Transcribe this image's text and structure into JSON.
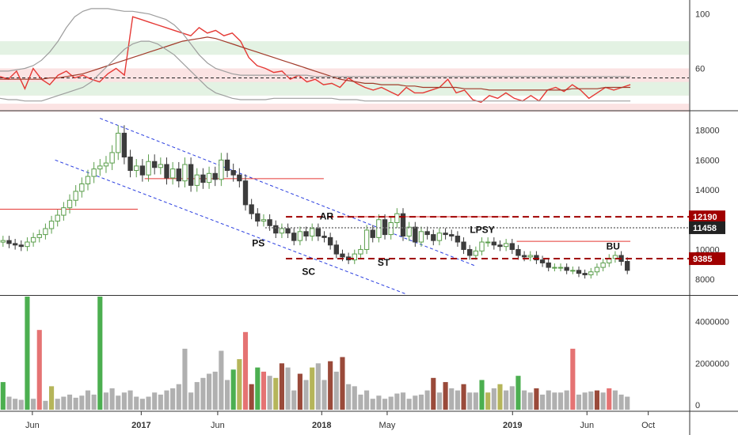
{
  "colors": {
    "up": "#5a9e4b",
    "down": "#e24b4b",
    "price_bar": "#3c3c3c",
    "rsi": "#e53935",
    "rsi_ma": "#a23b2b",
    "bands": "#9e9e9e",
    "channel": "#2b3fe0",
    "level_dark": "#a00000",
    "level_light": "#e53935",
    "level_mid": "#757575",
    "zone_green": "#e3f2e3",
    "zone_red": "#fbe3e3",
    "vol_gray": "#b0b0b0",
    "vol_green": "#4caf50",
    "vol_red": "#e57373",
    "vol_olive": "#b5b55a",
    "vol_brown": "#9a4a3a",
    "axis_text": "#333333",
    "grid": "#eeeeee"
  },
  "chart_data": [
    {
      "type": "line",
      "name": "oscillator",
      "y_axis_ticks": [
        "100",
        "60"
      ],
      "ylim": [
        30,
        108
      ],
      "zones": [
        {
          "from": 70,
          "to": 80,
          "color": "zone_green"
        },
        {
          "from": 40,
          "to": 60,
          "color": "zone_red"
        },
        {
          "from": 40,
          "to": 50,
          "color": "zone_green"
        },
        {
          "from": 28,
          "to": 34,
          "color": "zone_red"
        }
      ],
      "dashed_level": 53,
      "series": [
        {
          "role": "rsi",
          "values": [
            54,
            52,
            58,
            45,
            60,
            52,
            48,
            55,
            58,
            53,
            55,
            52,
            50,
            56,
            60,
            55,
            98,
            96,
            94,
            92,
            90,
            88,
            86,
            84,
            90,
            86,
            88,
            84,
            86,
            80,
            68,
            62,
            60,
            57,
            58,
            52,
            55,
            50,
            52,
            48,
            49,
            46,
            53,
            49,
            46,
            44,
            46,
            43,
            40,
            46,
            42,
            42,
            44,
            46,
            52,
            42,
            44,
            37,
            35,
            40,
            38,
            42,
            38,
            36,
            40,
            36,
            44,
            46,
            43,
            48,
            44,
            38,
            42,
            46,
            44,
            46,
            48
          ]
        },
        {
          "role": "rsi_ma",
          "values": [
            52,
            52,
            52,
            52,
            52,
            52,
            53,
            53,
            54,
            55,
            56,
            58,
            60,
            62,
            64,
            66,
            68,
            70,
            72,
            74,
            76,
            78,
            80,
            81,
            82,
            83,
            82,
            80,
            78,
            76,
            74,
            72,
            70,
            68,
            66,
            64,
            62,
            60,
            58,
            56,
            54,
            52,
            51,
            50,
            49,
            49,
            48,
            48,
            48,
            47,
            47,
            46,
            46,
            46,
            46,
            46,
            45,
            45,
            45,
            44,
            44,
            44,
            44,
            44,
            44,
            44,
            44,
            44,
            44,
            45,
            45,
            45,
            45,
            46,
            46,
            46,
            46
          ]
        },
        {
          "role": "band_upper",
          "values": [
            58,
            58,
            59,
            60,
            62,
            66,
            72,
            80,
            90,
            98,
            102,
            104,
            104,
            104,
            103,
            102,
            102,
            101,
            100,
            98,
            96,
            92,
            86,
            78,
            70,
            64,
            60,
            58,
            56,
            55,
            55,
            55,
            55,
            55,
            55,
            55,
            55,
            55,
            54,
            54,
            54,
            54,
            54,
            54,
            54,
            54,
            54,
            54,
            54,
            54,
            54,
            54,
            54,
            54,
            54,
            54,
            54,
            54,
            54,
            54,
            54,
            54,
            54,
            54,
            54,
            54,
            54,
            54,
            54,
            54,
            54,
            54,
            54,
            54,
            54,
            54,
            54
          ]
        },
        {
          "role": "band_lower",
          "values": [
            38,
            37,
            37,
            36,
            36,
            36,
            38,
            40,
            42,
            44,
            46,
            50,
            56,
            62,
            68,
            74,
            78,
            80,
            80,
            78,
            74,
            70,
            64,
            58,
            52,
            46,
            42,
            40,
            38,
            37,
            37,
            37,
            37,
            38,
            38,
            38,
            38,
            38,
            38,
            38,
            38,
            37,
            37,
            37,
            36,
            36,
            36,
            36,
            36,
            36,
            36,
            36,
            36,
            36,
            36,
            36,
            36,
            36,
            36,
            36,
            36,
            36,
            36,
            36,
            36,
            36,
            36,
            36,
            36,
            36,
            36,
            36,
            36,
            36,
            36,
            36,
            36
          ]
        }
      ]
    },
    {
      "type": "candlestick",
      "name": "price",
      "y_axis_ticks": [
        "18000",
        "16000",
        "14000",
        "12000",
        "10000",
        "8000"
      ],
      "ylim": [
        7000,
        19200
      ],
      "x_ticks": [
        "Jun",
        "2017",
        "Jun",
        "2018",
        "May",
        "2019",
        "Jun",
        "Oct"
      ],
      "close": [
        10600,
        10400,
        10300,
        10200,
        10500,
        10800,
        11000,
        11400,
        11900,
        12300,
        12800,
        13300,
        13900,
        14400,
        14900,
        15400,
        15600,
        15800,
        16500,
        17800,
        16200,
        15300,
        15600,
        15000,
        15900,
        15500,
        15700,
        14800,
        15400,
        14600,
        15700,
        14300,
        15000,
        14500,
        15100,
        14700,
        16000,
        15300,
        15000,
        14600,
        13000,
        12400,
        11900,
        12000,
        11600,
        11100,
        11400,
        11100,
        10600,
        11200,
        10900,
        11400,
        10900,
        10800,
        10300,
        9700,
        9500,
        9300,
        9700,
        10000,
        11300,
        10800,
        12000,
        11000,
        11800,
        12400,
        10900,
        11500,
        10500,
        11200,
        11000,
        10600,
        11100,
        11000,
        10900,
        10500,
        10000,
        9600,
        9900,
        10500,
        10500,
        10300,
        10200,
        10400,
        10000,
        9600,
        9500,
        9600,
        9300,
        9100,
        8800,
        8800,
        8800,
        8600,
        8600,
        8400,
        8300,
        8500,
        8800,
        9100,
        9400,
        9600,
        9200,
        8600
      ],
      "horizontal_levels": [
        {
          "value": 12190,
          "label": "12190",
          "style": "dashed-dark"
        },
        {
          "value": 11458,
          "label": "11458",
          "style": "dotted-mid"
        },
        {
          "value": 9385,
          "label": "9385",
          "style": "dashed-dark"
        }
      ],
      "segments": [
        {
          "x_from": 0.0,
          "x_to": 0.2,
          "value": 12700,
          "style": "solid-light"
        },
        {
          "x_from": 0.21,
          "x_to": 0.47,
          "value": 14750,
          "style": "solid-light"
        },
        {
          "x_from": 0.5,
          "x_to": 0.74,
          "value": 12200,
          "style": "solid-light"
        },
        {
          "x_from": 0.75,
          "x_to": 0.915,
          "value": 10550,
          "style": "solid-light"
        }
      ],
      "channel_lines": [
        {
          "x_from": 0.08,
          "y_from": 16000,
          "x_to": 0.59,
          "y_to": 7000
        },
        {
          "x_from": 0.145,
          "y_from": 18800,
          "x_to": 0.69,
          "y_to": 8900
        }
      ],
      "annotations": [
        {
          "text": "PS",
          "x": 0.375,
          "value": 10200
        },
        {
          "text": "SC",
          "x": 0.448,
          "value": 8300
        },
        {
          "text": "AR",
          "x": 0.474,
          "value": 12000
        },
        {
          "text": "ST",
          "x": 0.557,
          "value": 8900
        },
        {
          "text": "LPSY",
          "x": 0.7,
          "value": 11100
        },
        {
          "text": "BU",
          "x": 0.89,
          "value": 10000
        }
      ]
    },
    {
      "type": "bar",
      "name": "volume",
      "y_axis_ticks": [
        "4000000",
        "2000000",
        "0"
      ],
      "ylim": [
        -300000,
        5200000
      ],
      "values": [
        1100000,
        400000,
        300000,
        250000,
        5200000,
        300000,
        3600000,
        200000,
        900000,
        300000,
        400000,
        500000,
        350000,
        450000,
        700000,
        500000,
        5200000,
        600000,
        800000,
        450000,
        600000,
        700000,
        400000,
        300000,
        400000,
        600000,
        500000,
        700000,
        800000,
        1000000,
        2700000,
        600000,
        1100000,
        1300000,
        1500000,
        1600000,
        2600000,
        1200000,
        1700000,
        2200000,
        3500000,
        1000000,
        1800000,
        1600000,
        1400000,
        1300000,
        2000000,
        1800000,
        700000,
        1500000,
        1200000,
        1800000,
        2000000,
        1200000,
        2100000,
        1600000,
        2300000,
        1000000,
        900000,
        500000,
        700000,
        300000,
        450000,
        300000,
        400000,
        550000,
        600000,
        300000,
        450000,
        500000,
        700000,
        1300000,
        600000,
        1100000,
        800000,
        700000,
        1000000,
        600000,
        600000,
        1200000,
        600000,
        800000,
        1000000,
        700000,
        900000,
        1400000,
        700000,
        600000,
        800000,
        500000,
        700000,
        600000,
        600000,
        700000,
        2700000,
        500000,
        600000,
        650000,
        700000,
        600000,
        800000,
        700000,
        500000,
        400000
      ],
      "colors": [
        "vol_green",
        "vol_gray",
        "vol_gray",
        "vol_gray",
        "vol_green",
        "vol_gray",
        "vol_red",
        "vol_gray",
        "vol_olive",
        "vol_gray",
        "vol_gray",
        "vol_gray",
        "vol_gray",
        "vol_gray",
        "vol_gray",
        "vol_gray",
        "vol_green",
        "vol_gray",
        "vol_gray",
        "vol_gray",
        "vol_gray",
        "vol_gray",
        "vol_gray",
        "vol_gray",
        "vol_gray",
        "vol_gray",
        "vol_gray",
        "vol_gray",
        "vol_gray",
        "vol_gray",
        "vol_gray",
        "vol_gray",
        "vol_gray",
        "vol_gray",
        "vol_gray",
        "vol_gray",
        "vol_gray",
        "vol_gray",
        "vol_green",
        "vol_olive",
        "vol_red",
        "vol_brown",
        "vol_green",
        "vol_red",
        "vol_gray",
        "vol_olive",
        "vol_brown",
        "vol_gray",
        "vol_gray",
        "vol_brown",
        "vol_gray",
        "vol_olive",
        "vol_gray",
        "vol_gray",
        "vol_brown",
        "vol_gray",
        "vol_brown",
        "vol_gray",
        "vol_gray",
        "vol_gray",
        "vol_gray",
        "vol_gray",
        "vol_gray",
        "vol_gray",
        "vol_gray",
        "vol_gray",
        "vol_gray",
        "vol_gray",
        "vol_gray",
        "vol_gray",
        "vol_gray",
        "vol_brown",
        "vol_gray",
        "vol_brown",
        "vol_gray",
        "vol_gray",
        "vol_brown",
        "vol_gray",
        "vol_gray",
        "vol_green",
        "vol_olive",
        "vol_gray",
        "vol_olive",
        "vol_gray",
        "vol_gray",
        "vol_green",
        "vol_gray",
        "vol_gray",
        "vol_brown",
        "vol_gray",
        "vol_gray",
        "vol_gray",
        "vol_gray",
        "vol_gray",
        "vol_red",
        "vol_gray",
        "vol_gray",
        "vol_gray",
        "vol_brown",
        "vol_gray",
        "vol_red",
        "vol_gray",
        "vol_gray",
        "vol_gray"
      ]
    }
  ]
}
